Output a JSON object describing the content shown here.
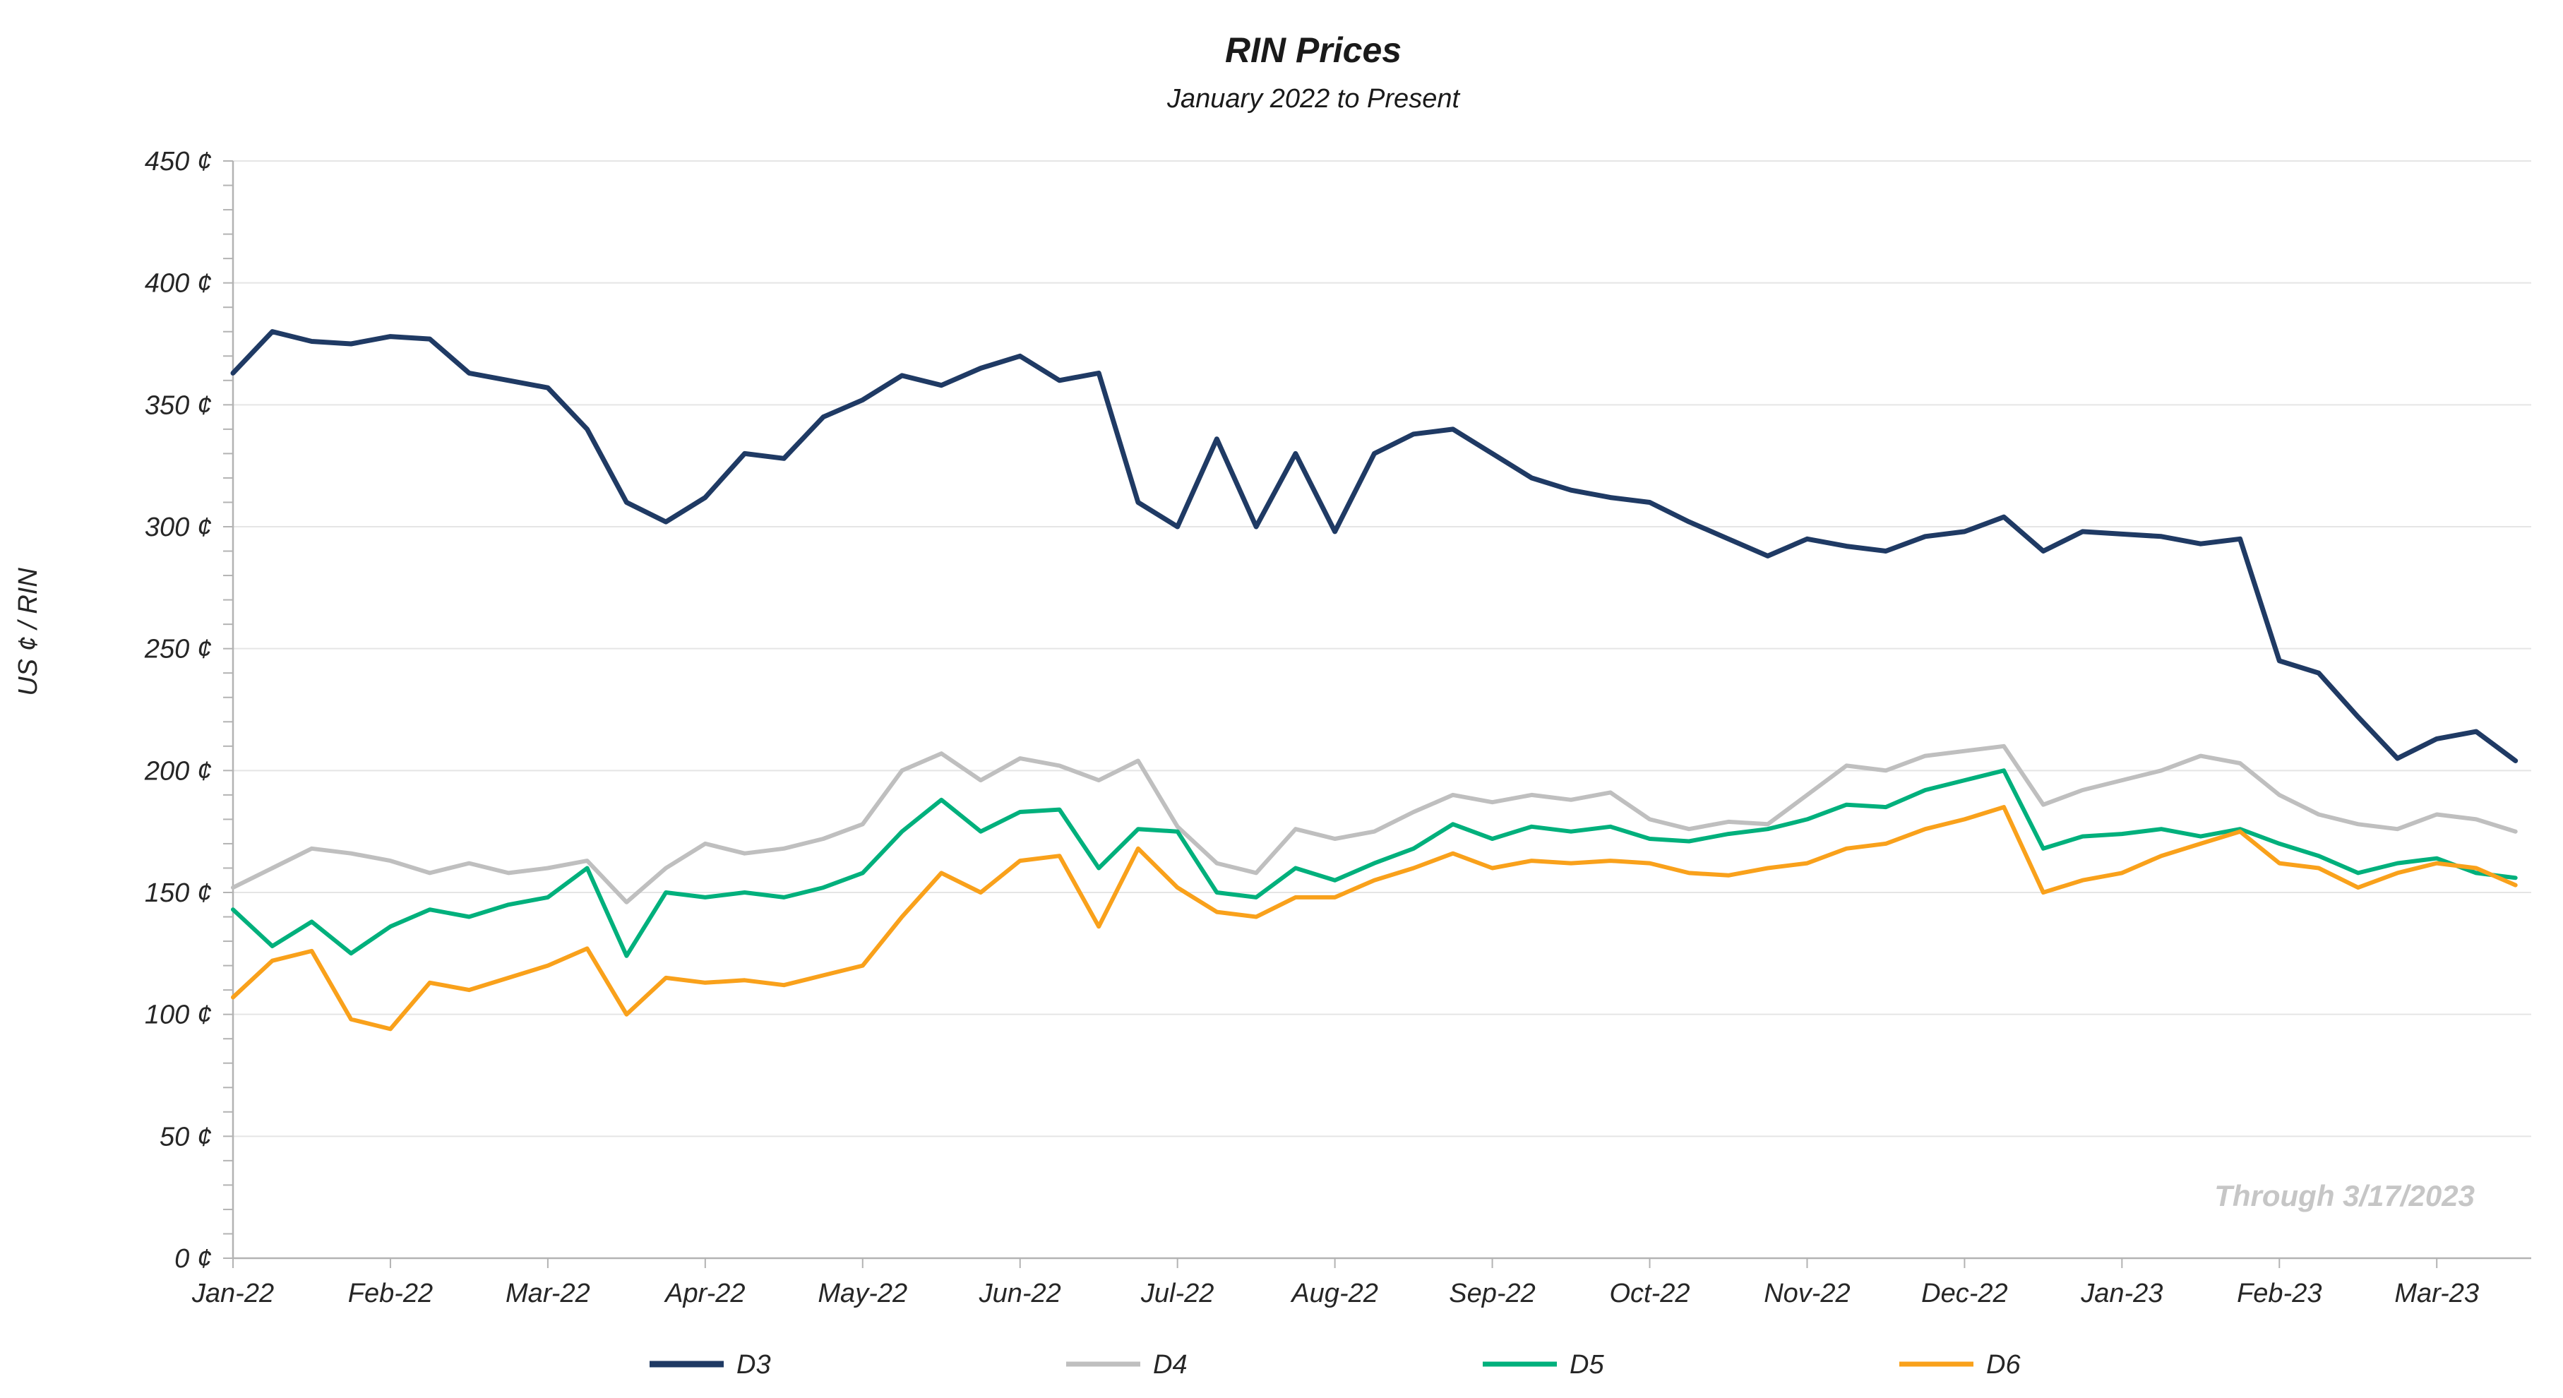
{
  "chart_data": {
    "type": "line",
    "title": "RIN Prices",
    "subtitle": "January 2022 to Present",
    "ylabel": "US ¢ / RIN",
    "xlabel": "",
    "annotation": "Through 3/17/2023",
    "grid": "horizontal",
    "legend_position": "bottom",
    "x_unit": "months since Jan-2022",
    "x_step": 0.25,
    "xlim": [
      0,
      14.6
    ],
    "ylim": [
      0,
      450
    ],
    "y_tick_step": 50,
    "y_minor_tick_step": 10,
    "y_tick_suffix": " ¢",
    "x_ticks": [
      {
        "pos": 0,
        "label": "Jan-22"
      },
      {
        "pos": 1,
        "label": "Feb-22"
      },
      {
        "pos": 2,
        "label": "Mar-22"
      },
      {
        "pos": 3,
        "label": "Apr-22"
      },
      {
        "pos": 4,
        "label": "May-22"
      },
      {
        "pos": 5,
        "label": "Jun-22"
      },
      {
        "pos": 6,
        "label": "Jul-22"
      },
      {
        "pos": 7,
        "label": "Aug-22"
      },
      {
        "pos": 8,
        "label": "Sep-22"
      },
      {
        "pos": 9,
        "label": "Oct-22"
      },
      {
        "pos": 10,
        "label": "Nov-22"
      },
      {
        "pos": 11,
        "label": "Dec-22"
      },
      {
        "pos": 12,
        "label": "Jan-23"
      },
      {
        "pos": 13,
        "label": "Feb-23"
      },
      {
        "pos": 14,
        "label": "Mar-23"
      }
    ],
    "series": [
      {
        "name": "D3",
        "color": "#1f3a64",
        "width": 7,
        "values": [
          363,
          380,
          376,
          375,
          378,
          377,
          363,
          360,
          357,
          340,
          310,
          302,
          312,
          330,
          328,
          345,
          352,
          362,
          358,
          365,
          370,
          360,
          363,
          310,
          300,
          336,
          300,
          330,
          298,
          330,
          338,
          340,
          330,
          320,
          315,
          312,
          310,
          302,
          295,
          288,
          295,
          292,
          290,
          296,
          298,
          304,
          290,
          298,
          297,
          296,
          293,
          295,
          245,
          240,
          222,
          205,
          213,
          216,
          204
        ]
      },
      {
        "name": "D4",
        "color": "#bfbfbf",
        "width": 6,
        "values": [
          152,
          160,
          168,
          166,
          163,
          158,
          162,
          158,
          160,
          163,
          146,
          160,
          170,
          166,
          168,
          172,
          178,
          200,
          207,
          196,
          205,
          202,
          196,
          204,
          177,
          162,
          158,
          176,
          172,
          175,
          183,
          190,
          187,
          190,
          188,
          191,
          180,
          176,
          179,
          178,
          190,
          202,
          200,
          206,
          208,
          210,
          186,
          192,
          196,
          200,
          206,
          203,
          190,
          182,
          178,
          176,
          182,
          180,
          175
        ]
      },
      {
        "name": "D5",
        "color": "#00b07c",
        "width": 6,
        "values": [
          143,
          128,
          138,
          125,
          136,
          143,
          140,
          145,
          148,
          160,
          124,
          150,
          148,
          150,
          148,
          152,
          158,
          175,
          188,
          175,
          183,
          184,
          160,
          176,
          175,
          150,
          148,
          160,
          155,
          162,
          168,
          178,
          172,
          177,
          175,
          177,
          172,
          171,
          174,
          176,
          180,
          186,
          185,
          192,
          196,
          200,
          168,
          173,
          174,
          176,
          173,
          176,
          170,
          165,
          158,
          162,
          164,
          158,
          156
        ]
      },
      {
        "name": "D6",
        "color": "#f9a11b",
        "width": 6,
        "values": [
          107,
          122,
          126,
          98,
          94,
          113,
          110,
          115,
          120,
          127,
          100,
          115,
          113,
          114,
          112,
          116,
          120,
          140,
          158,
          150,
          163,
          165,
          136,
          168,
          152,
          142,
          140,
          148,
          148,
          155,
          160,
          166,
          160,
          163,
          162,
          163,
          162,
          158,
          157,
          160,
          162,
          168,
          170,
          176,
          180,
          185,
          150,
          155,
          158,
          165,
          170,
          175,
          162,
          160,
          152,
          158,
          162,
          160,
          153
        ]
      }
    ]
  }
}
